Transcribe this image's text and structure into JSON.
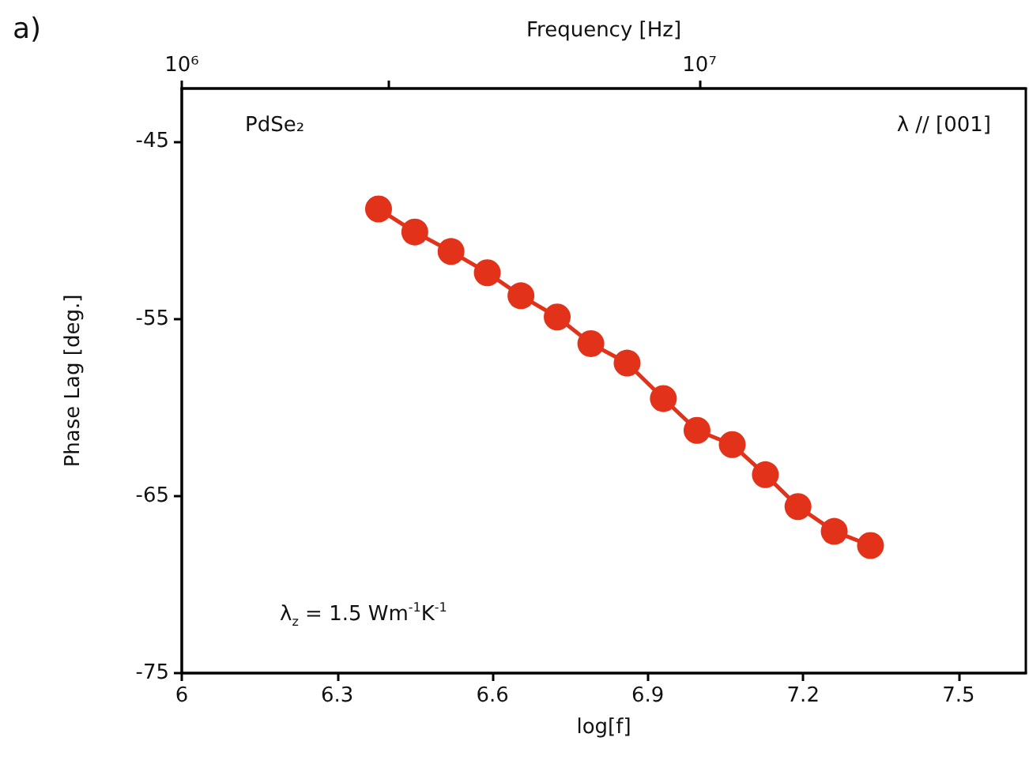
{
  "chart_data": {
    "type": "line",
    "xlabel": "log[f]",
    "ylabel": "Phase Lag [deg.]",
    "x2label": "Frequency [Hz]",
    "annotations": [
      "a)",
      "PdSe₂",
      "λ // [001]",
      "λ$_{z}$ = 1.5 Wm$^{-1}$K$^{-1}$"
    ],
    "xlim": [
      6,
      7.63
    ],
    "xticks": [
      6,
      6.3,
      6.6,
      6.9,
      7.2,
      7.5
    ],
    "x2lim": [
      1000000,
      42700000
    ],
    "x2ticks": [
      {
        "value": 1000000,
        "label": "10⁶"
      },
      {
        "value": 2500000,
        "label": null
      },
      {
        "value": 10000000,
        "label": "10⁷"
      }
    ],
    "ylim": [
      -75,
      -42
    ],
    "yticks": [
      -75,
      -65,
      -55,
      -45
    ],
    "log": "x2",
    "grid": false,
    "marker": "circle",
    "line_style": "solid",
    "series": [
      {
        "color": "#e3321a",
        "x": [
          6.38,
          6.45,
          6.52,
          6.59,
          6.655,
          6.725,
          6.79,
          6.86,
          6.93,
          6.995,
          7.063,
          7.127,
          7.19,
          7.26,
          7.33
        ],
        "values": [
          -48.8,
          -50.1,
          -51.2,
          -52.4,
          -53.7,
          -54.9,
          -56.4,
          -57.5,
          -59.5,
          -61.3,
          -62.1,
          -63.8,
          -65.6,
          -67.0,
          -67.8
        ]
      }
    ]
  }
}
